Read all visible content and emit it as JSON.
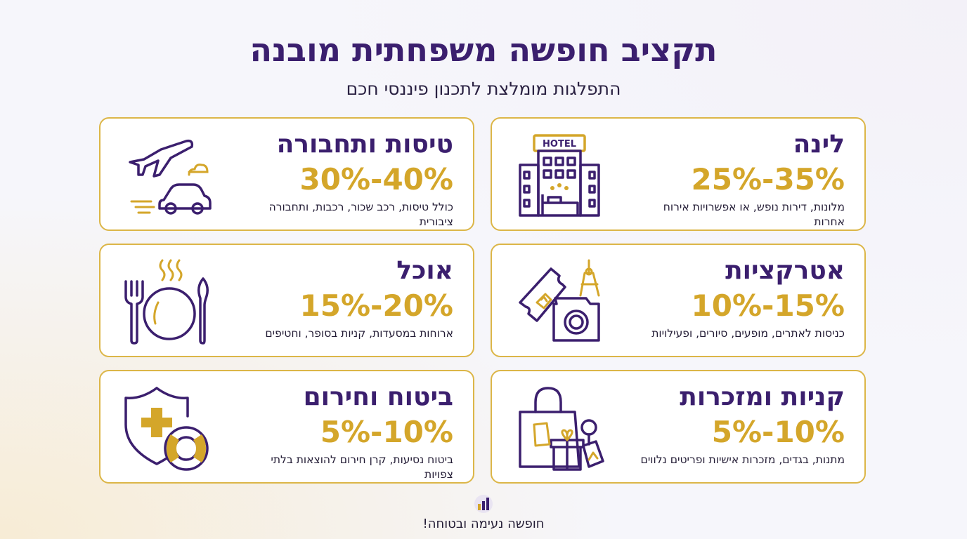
{
  "header": {
    "title": "תקציב חופשה משפחתית מובנה",
    "subtitle": "התפלגות מומלצת לתכנון פיננסי חכם"
  },
  "cards": [
    {
      "title": "לינה",
      "range": "25%-35%",
      "description": "מלונות, דירות נופש, או אפשרויות אירוח אחרות",
      "icon": "hotel-icon",
      "hotel_sign": "HOTEL"
    },
    {
      "title": "טיסות ותחבורה",
      "range": "30%-40%",
      "description": "כולל טיסות, רכב שכור, רכבות, ותחבורה ציבורית",
      "icon": "plane-car-icon"
    },
    {
      "title": "אטרקציות",
      "range": "10%-15%",
      "description": "כניסות לאתרים, מופעים, סיורים, ופעילויות",
      "icon": "ticket-camera-icon"
    },
    {
      "title": "אוכל",
      "range": "15%-20%",
      "description": "ארוחות במסעדות, קניות בסופר, וחטיפים",
      "icon": "plate-cutlery-icon"
    },
    {
      "title": "קניות ומזכרות",
      "range": "5%-10%",
      "description": "מתנות, בגדים, מזכרות אישיות ופריטים נלווים",
      "icon": "shopping-bag-icon"
    },
    {
      "title": "ביטוח וחירום",
      "range": "5%-10%",
      "description": "ביטוח נסיעות, קרן חירום להוצאות בלתי צפויות",
      "icon": "shield-lifebuoy-icon"
    }
  ],
  "footer": {
    "text": "חופשה נעימה ובטוחה!",
    "logo_icon": "bar-chart-logo-icon"
  },
  "colors": {
    "primary": "#3b1f6e",
    "accent": "#d4a62a",
    "border": "#dcb648"
  }
}
